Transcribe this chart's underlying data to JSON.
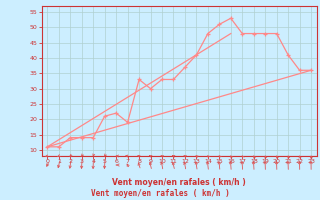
{
  "title": "",
  "xlabel": "Vent moyen/en rafales ( km/h )",
  "bg_color": "#cceeff",
  "grid_color": "#b0d0d0",
  "line_color": "#ff8888",
  "xlim": [
    -0.5,
    23.5
  ],
  "ylim": [
    8,
    57
  ],
  "xticks": [
    0,
    1,
    2,
    3,
    4,
    5,
    6,
    7,
    8,
    9,
    10,
    11,
    12,
    13,
    14,
    15,
    16,
    17,
    18,
    19,
    20,
    21,
    22,
    23
  ],
  "yticks": [
    10,
    15,
    20,
    25,
    30,
    35,
    40,
    45,
    50,
    55
  ],
  "line1_x": [
    0,
    1,
    2,
    3,
    4,
    5,
    6,
    7,
    8,
    9,
    10,
    11,
    12,
    13,
    14,
    15,
    16,
    17,
    18,
    19,
    20,
    21,
    22,
    23
  ],
  "line1_y": [
    11,
    11,
    14,
    14,
    14,
    21,
    22,
    19,
    33,
    30,
    33,
    33,
    37,
    41,
    48,
    51,
    53,
    48,
    48,
    48,
    48,
    41,
    36,
    36
  ],
  "line2_x": [
    0,
    23
  ],
  "line2_y": [
    11,
    36
  ],
  "line3_x": [
    0,
    16
  ],
  "line3_y": [
    11,
    48
  ],
  "wind_dir_x": [
    0,
    1,
    2,
    3,
    4,
    5,
    6,
    7,
    8,
    9,
    10,
    11,
    12,
    13,
    14,
    15,
    16,
    17,
    18,
    19,
    20,
    21,
    22,
    23
  ],
  "wind_dir_angles": [
    230,
    210,
    200,
    190,
    185,
    190,
    270,
    305,
    320,
    330,
    335,
    330,
    335,
    340,
    345,
    345,
    350,
    350,
    352,
    355,
    355,
    355,
    357,
    358
  ]
}
